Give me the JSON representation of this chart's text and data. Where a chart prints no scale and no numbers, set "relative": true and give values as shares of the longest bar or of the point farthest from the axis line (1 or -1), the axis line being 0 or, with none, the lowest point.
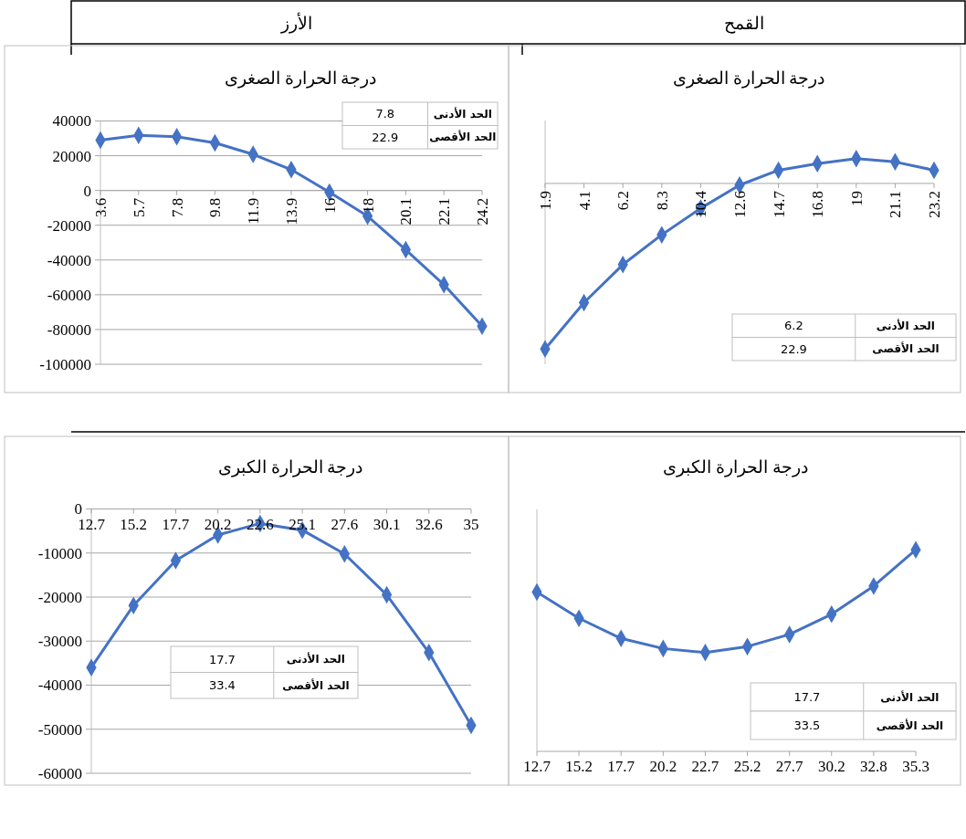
{
  "chart_data": [
    {
      "type": "line",
      "subtitle": "الأرز",
      "title": "درجة الحرارة الصغرى",
      "categories": [
        "3.6",
        "5.7",
        "7.8",
        "9.8",
        "11.9",
        "13.9",
        "16",
        "18",
        "20.1",
        "22.1",
        "24.2"
      ],
      "series": [
        {
          "color": "#4472c4",
          "values": [
            29000,
            31700,
            30900,
            27400,
            20800,
            12000,
            -1000,
            -14800,
            -34100,
            -54200,
            -78100
          ]
        }
      ],
      "ylim": [
        -100000,
        40000
      ],
      "yticks": [
        -100000,
        -80000,
        -60000,
        -40000,
        -20000,
        0,
        20000,
        40000
      ],
      "grid": "y",
      "marker": "diamond",
      "annotations": [
        "الحد الأدنى",
        "7.8",
        "الحد الأقصى",
        "22.9"
      ]
    },
    {
      "type": "line",
      "subtitle": "القمح",
      "title": "درجة الحرارة الصغرى",
      "categories": [
        "1.9",
        "4.1",
        "6.2",
        "8.3",
        "10.4",
        "12.6",
        "14.7",
        "16.8",
        "19",
        "21.1",
        "23.2"
      ],
      "series": [
        {
          "color": "#4472c4",
          "values": [
            -1,
            -0.72,
            -0.49,
            -0.31,
            -0.15,
            -0.01,
            0.08,
            0.12,
            0.15,
            0.13,
            0.08
          ]
        }
      ],
      "relative": true,
      "marker": "diamond",
      "annotations": [
        "الحد الأدنى",
        "6.2",
        "الحد الأقصى",
        "22.9"
      ]
    },
    {
      "type": "line",
      "title": "درجة الحرارة الكبرى",
      "categories": [
        "12.7",
        "15.2",
        "17.7",
        "20.2",
        "22.6",
        "25.1",
        "27.6",
        "30.1",
        "32.6",
        "35"
      ],
      "series": [
        {
          "color": "#4472c4",
          "values": [
            -36000,
            -21900,
            -11700,
            -5900,
            -3300,
            -4800,
            -10200,
            -19500,
            -32600,
            -49100
          ]
        }
      ],
      "ylim": [
        -60000,
        0
      ],
      "yticks": [
        -60000,
        -50000,
        -40000,
        -30000,
        -20000,
        -10000,
        0
      ],
      "grid": "y",
      "marker": "diamond",
      "annotations": [
        "الحد الأدنى",
        "17.7",
        "الحد الأقصى",
        "33.4"
      ]
    },
    {
      "type": "line",
      "title": "درجة الحرارة الكبرى",
      "categories": [
        "12.7",
        "15.2",
        "17.7",
        "20.2",
        "22.7",
        "25.2",
        "27.7",
        "30.2",
        "32.8",
        "35.3"
      ],
      "series": [
        {
          "color": "#4472c4",
          "values": [
            0.79,
            0.66,
            0.56,
            0.51,
            0.49,
            0.52,
            0.58,
            0.68,
            0.82,
            1
          ]
        }
      ],
      "relative": true,
      "marker": "diamond",
      "annotations": [
        "الحد الأدنى",
        "17.7",
        "الحد الأقصى",
        "33.5"
      ]
    }
  ]
}
